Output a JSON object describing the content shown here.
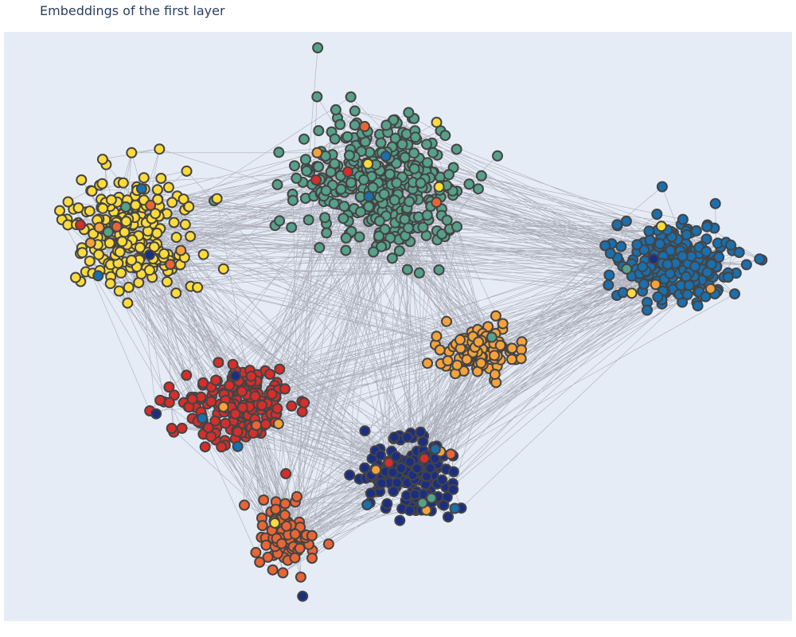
{
  "title": "Embeddings of the first layer",
  "chart_data": {
    "type": "scatter",
    "title": "Embeddings of the first layer",
    "grid": false,
    "legend": false,
    "background_color": "#e5ecf6",
    "edge_color": "#9a9aa6",
    "marker_outline_color": "#444444",
    "clusters": [
      {
        "color": "#57a08a",
        "center": [
          480,
          230
        ],
        "spread": [
          95,
          85
        ],
        "count": 340
      },
      {
        "color": "#fddb3a",
        "center": [
          165,
          290
        ],
        "spread": [
          70,
          65
        ],
        "count": 210
      },
      {
        "color": "#1a6fae",
        "center": [
          850,
          330
        ],
        "spread": [
          65,
          45
        ],
        "count": 230
      },
      {
        "color": "#f4a23c",
        "center": [
          600,
          440
        ],
        "spread": [
          45,
          30
        ],
        "count": 110
      },
      {
        "color": "#d62e2b",
        "center": [
          300,
          510
        ],
        "spread": [
          65,
          45
        ],
        "count": 190
      },
      {
        "color": "#1a2e82",
        "center": [
          520,
          600
        ],
        "spread": [
          55,
          45
        ],
        "count": 160
      },
      {
        "color": "#ea6535",
        "center": [
          360,
          675
        ],
        "spread": [
          30,
          35
        ],
        "count": 85
      }
    ]
  }
}
